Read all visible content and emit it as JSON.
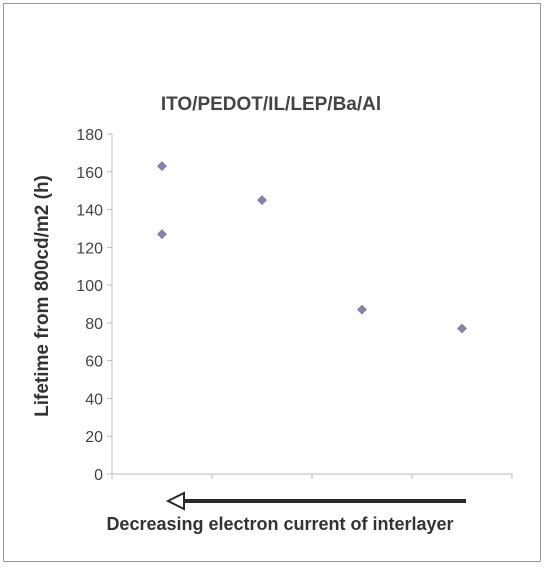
{
  "chart_data": {
    "type": "scatter",
    "title": "ITO/PEDOT/IL/LEP/Ba/Al",
    "ylabel": "Lifetime from 800cd/m2 (h)",
    "xlabel": "Decreasing electron current of interlayer",
    "x_direction": "decreasing",
    "ylim": [
      0,
      180
    ],
    "yticks": [
      "0",
      "20",
      "40",
      "60",
      "80",
      "100",
      "120",
      "140",
      "160",
      "180"
    ],
    "grid": false,
    "marker_color": "#8a7fa8",
    "points": [
      {
        "x": 1,
        "y": 163
      },
      {
        "x": 1,
        "y": 127
      },
      {
        "x": 2,
        "y": 145
      },
      {
        "x": 3,
        "y": 87
      },
      {
        "x": 4,
        "y": 77
      }
    ]
  }
}
